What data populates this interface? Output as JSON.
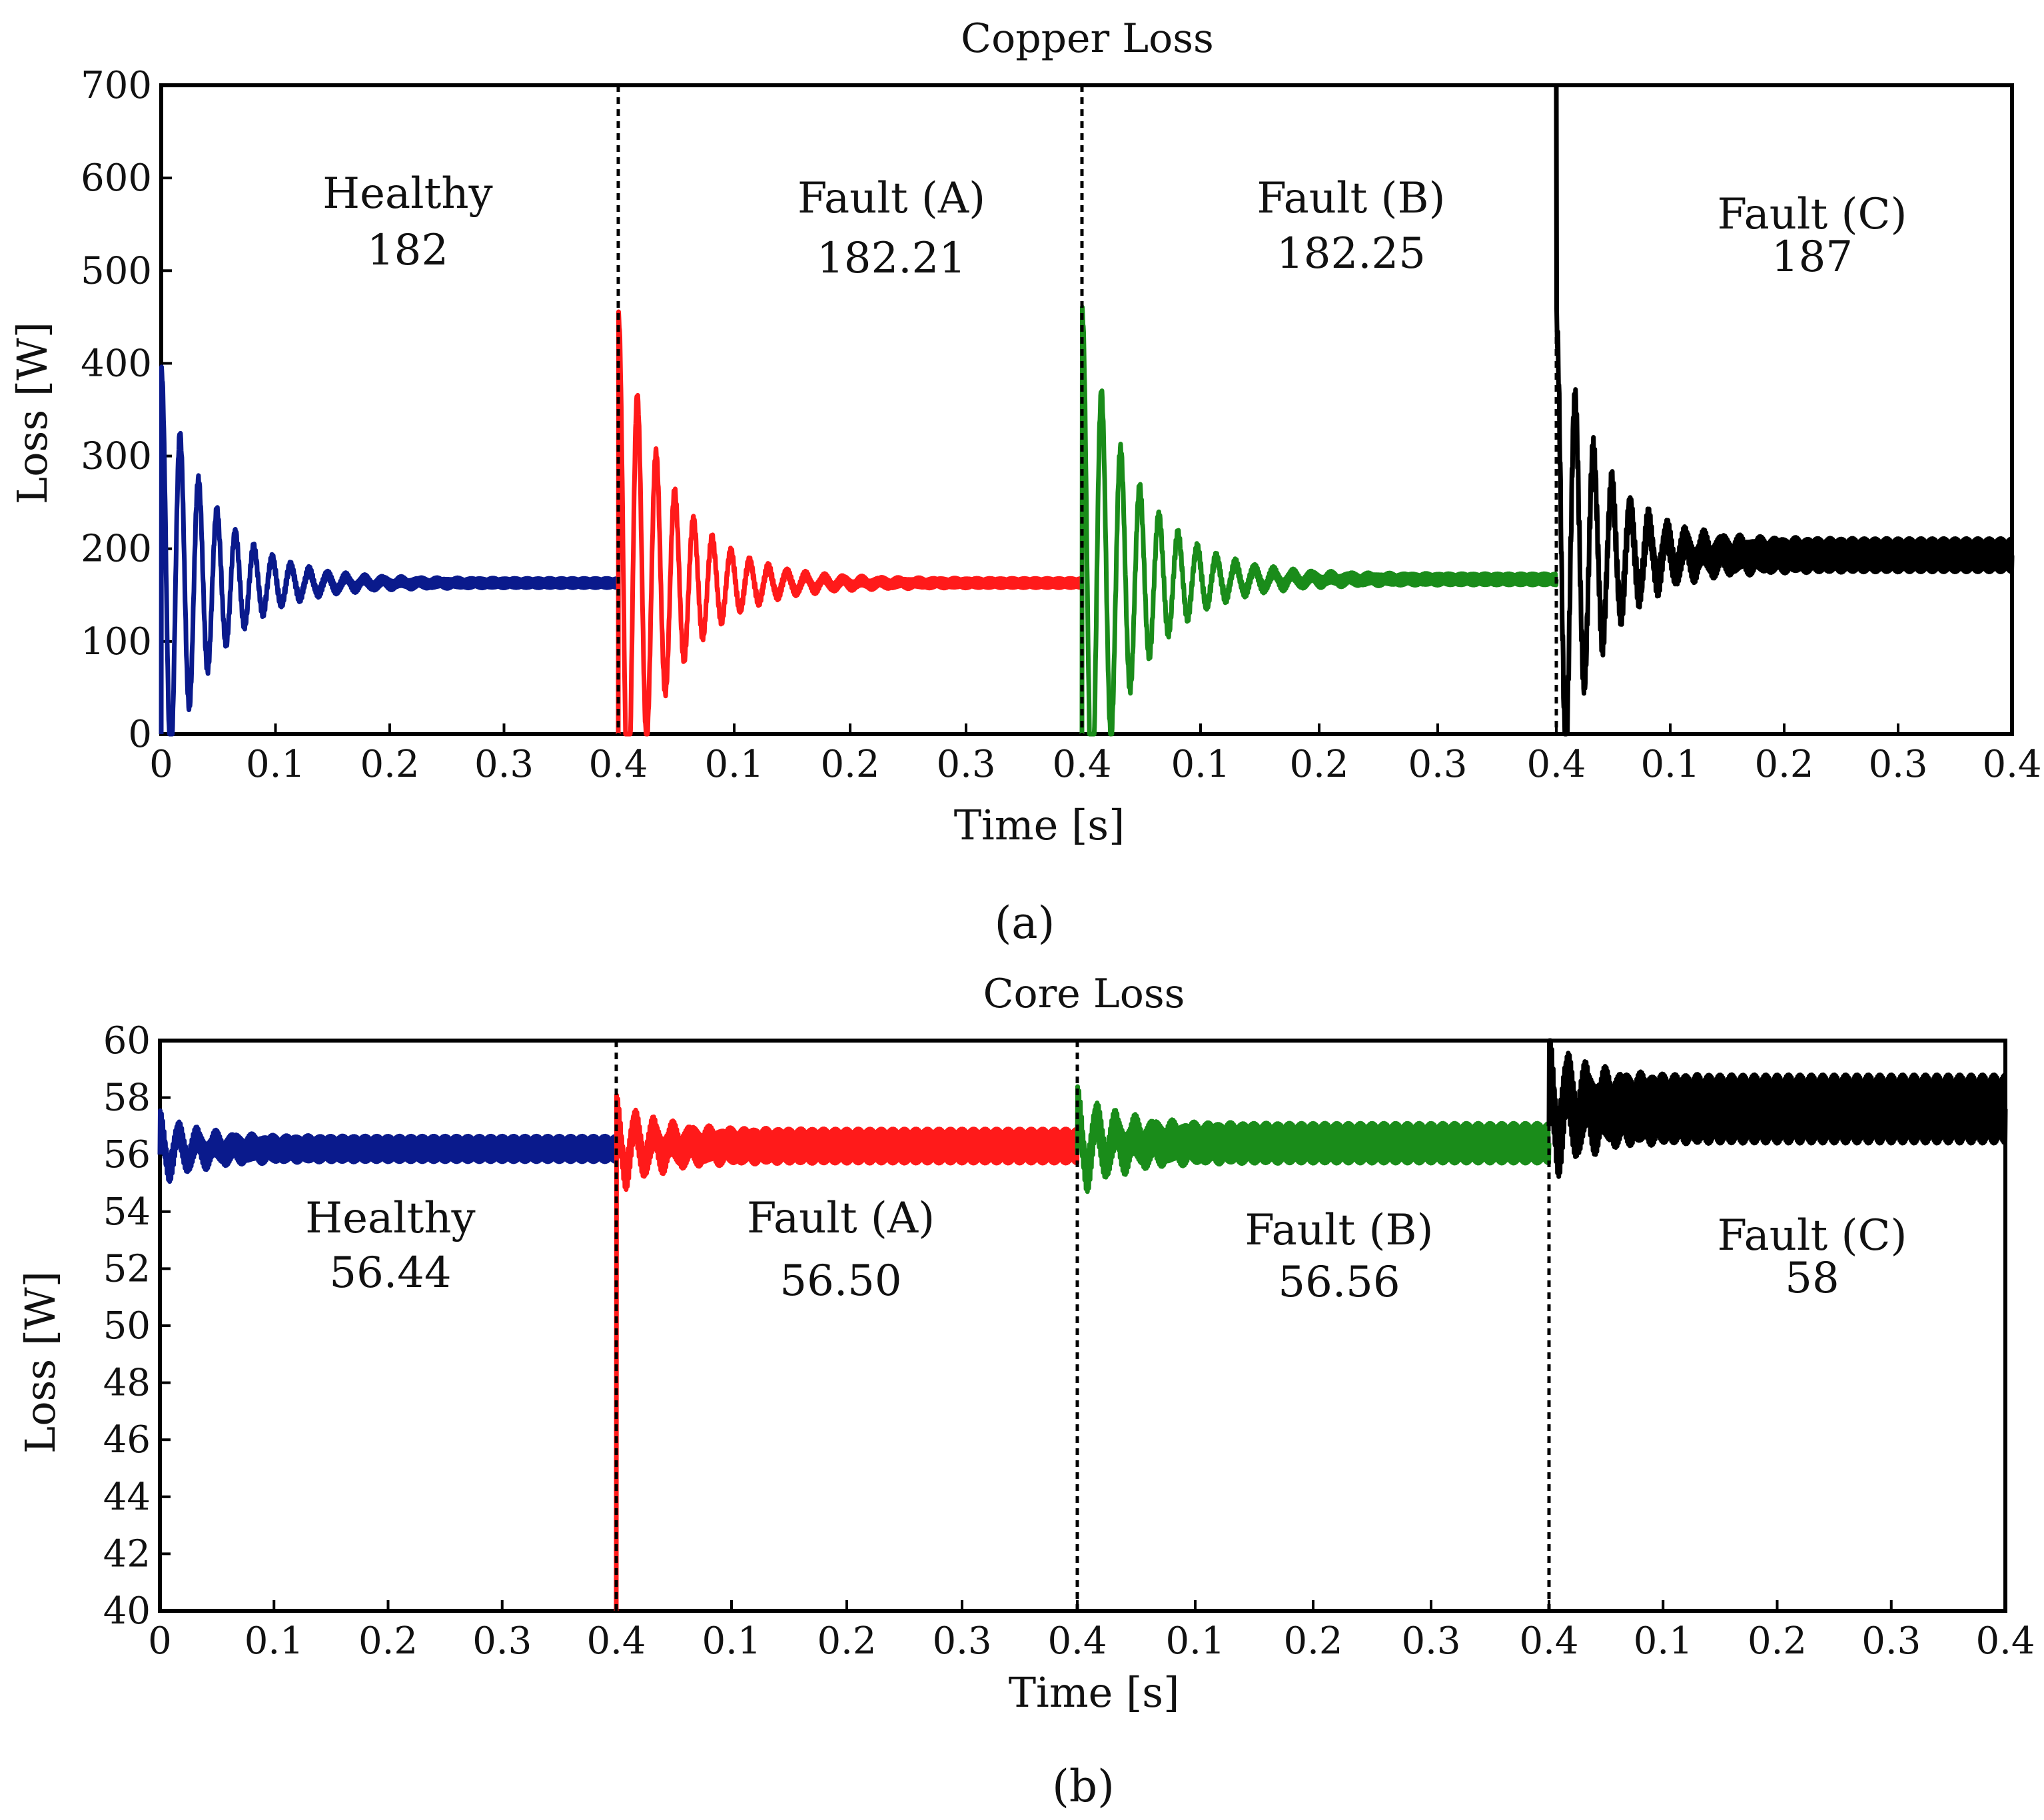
{
  "figure": {
    "captions": [
      "(a)",
      "(b)"
    ],
    "colors": {
      "healthy": "#0a1a8c",
      "fault_a": "#ff1a1a",
      "fault_b": "#1a8c1a",
      "fault_c": "#000000"
    }
  },
  "chart_data": [
    {
      "type": "line",
      "title": "Copper Loss",
      "xlabel": "Time [s]",
      "ylabel": "Loss [W]",
      "ylim": [
        0,
        700
      ],
      "yticks": [
        "0",
        "100",
        "200",
        "300",
        "400",
        "500",
        "600",
        "700"
      ],
      "xticks": [
        "0",
        "0.1",
        "0.2",
        "0.3",
        "0.4",
        "0.1",
        "0.2",
        "0.3",
        "0.4",
        "0.1",
        "0.2",
        "0.3",
        "0.4",
        "0.1",
        "0.2",
        "0.3",
        "0.4"
      ],
      "segment_xlim": [
        0,
        0.4
      ],
      "segments": [
        {
          "name": "Healthy",
          "value": "182",
          "color": "#0a1a8c",
          "start": 0,
          "steady": 163,
          "amp": 230,
          "decay": 0.045,
          "freq": 62,
          "ripple": 5
        },
        {
          "name": "Fault (A)",
          "value": "182.21",
          "color": "#ff1a1a",
          "start": 0,
          "steady": 163,
          "amp": 290,
          "decay": 0.045,
          "freq": 62,
          "ripple": 5
        },
        {
          "name": "Fault (B)",
          "value": "182.25",
          "color": "#1a8c1a",
          "start": 0,
          "steady": 167,
          "amp": 290,
          "decay": 0.045,
          "freq": 62,
          "ripple": 6
        },
        {
          "name": "Fault (C)",
          "value": "187",
          "color": "#000000",
          "start": 700,
          "steady": 193,
          "amp": 250,
          "decay": 0.04,
          "freq": 62,
          "ripple": 18
        }
      ]
    },
    {
      "type": "line",
      "title": "Core Loss",
      "xlabel": "Time [s]",
      "ylabel": "Loss [W]",
      "ylim": [
        40,
        60
      ],
      "yticks": [
        "40",
        "42",
        "44",
        "46",
        "48",
        "50",
        "52",
        "54",
        "56",
        "58",
        "60"
      ],
      "xticks": [
        "0",
        "0.1",
        "0.2",
        "0.3",
        "0.4",
        "0.1",
        "0.2",
        "0.3",
        "0.4",
        "0.1",
        "0.2",
        "0.3",
        "0.4",
        "0.1",
        "0.2",
        "0.3",
        "0.4"
      ],
      "segment_xlim": [
        0,
        0.4
      ],
      "segments": [
        {
          "name": "Healthy",
          "value": "56.44",
          "color": "#0a1a8c",
          "start": 56,
          "steady": 56.2,
          "amp": 0.9,
          "decay": 0.035,
          "freq": 62,
          "ripple": 0.45
        },
        {
          "name": "Fault (A)",
          "value": "56.50",
          "color": "#ff1a1a",
          "start": 40,
          "steady": 56.3,
          "amp": 1.2,
          "decay": 0.035,
          "freq": 62,
          "ripple": 0.6
        },
        {
          "name": "Fault (B)",
          "value": "56.56",
          "color": "#1a8c1a",
          "start": 56,
          "steady": 56.4,
          "amp": 1.3,
          "decay": 0.035,
          "freq": 62,
          "ripple": 0.7
        },
        {
          "name": "Fault (C)",
          "value": "58",
          "color": "#000000",
          "start": 57,
          "steady": 57.6,
          "amp": 1.6,
          "decay": 0.03,
          "freq": 62,
          "ripple": 1.2
        }
      ]
    }
  ]
}
